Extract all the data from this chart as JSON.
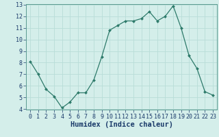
{
  "x": [
    0,
    1,
    2,
    3,
    4,
    5,
    6,
    7,
    8,
    9,
    10,
    11,
    12,
    13,
    14,
    15,
    16,
    17,
    18,
    19,
    20,
    21,
    22,
    23
  ],
  "y": [
    8.1,
    7.0,
    5.7,
    5.1,
    4.1,
    4.6,
    5.4,
    5.4,
    6.5,
    8.5,
    10.8,
    11.2,
    11.6,
    11.6,
    11.8,
    12.4,
    11.6,
    12.0,
    12.9,
    11.0,
    8.6,
    7.5,
    5.5,
    5.2
  ],
  "xlabel": "Humidex (Indice chaleur)",
  "ylim": [
    4,
    13
  ],
  "xlim": [
    -0.5,
    23.5
  ],
  "yticks": [
    4,
    5,
    6,
    7,
    8,
    9,
    10,
    11,
    12,
    13
  ],
  "xticks": [
    0,
    1,
    2,
    3,
    4,
    5,
    6,
    7,
    8,
    9,
    10,
    11,
    12,
    13,
    14,
    15,
    16,
    17,
    18,
    19,
    20,
    21,
    22,
    23
  ],
  "line_color": "#2d7a6a",
  "marker_color": "#2d7a6a",
  "bg_color": "#d4eeea",
  "grid_color": "#b8ddd8",
  "xlabel_color": "#1a3a6a",
  "tick_label_color": "#1a3a6a",
  "xlabel_fontsize": 7.5,
  "tick_fontsize": 6.0
}
